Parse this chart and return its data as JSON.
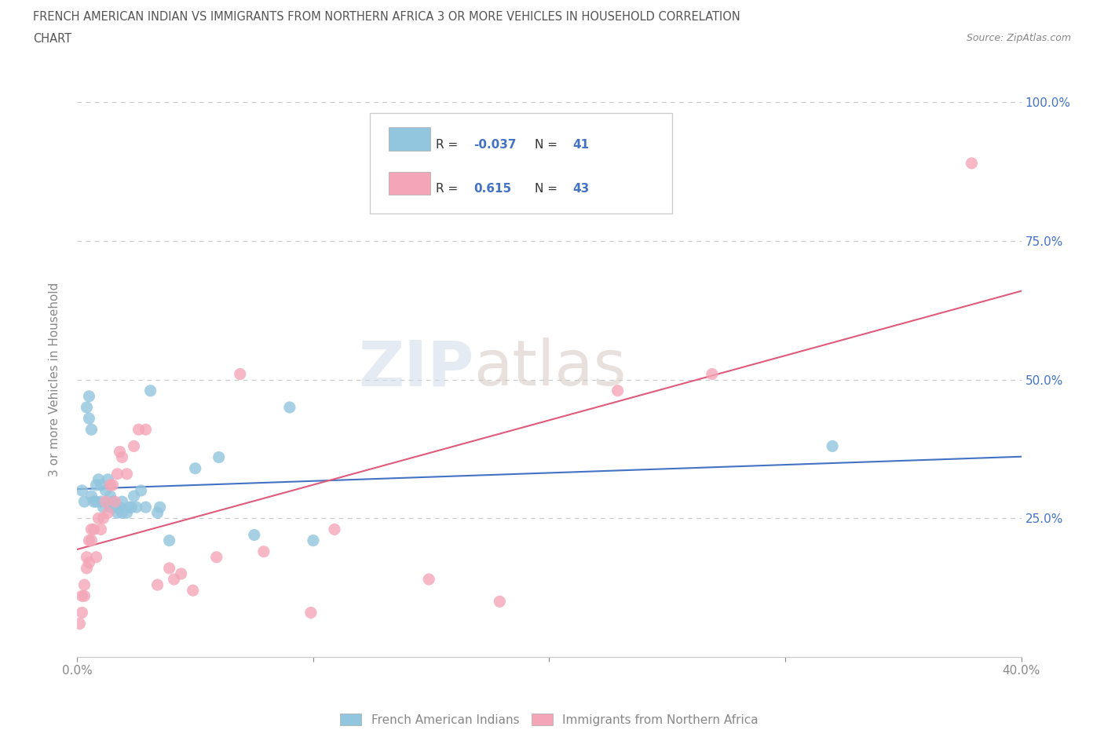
{
  "title_line1": "FRENCH AMERICAN INDIAN VS IMMIGRANTS FROM NORTHERN AFRICA 3 OR MORE VEHICLES IN HOUSEHOLD CORRELATION",
  "title_line2": "CHART",
  "source": "Source: ZipAtlas.com",
  "watermark_zip": "ZIP",
  "watermark_atlas": "atlas",
  "ylabel_label": "3 or more Vehicles in Household",
  "xlim": [
    0.0,
    0.4
  ],
  "ylim": [
    0.0,
    1.0
  ],
  "blue_label": "French American Indians",
  "pink_label": "Immigrants from Northern Africa",
  "R_blue": -0.037,
  "N_blue": 41,
  "R_pink": 0.615,
  "N_pink": 43,
  "blue_color": "#92c5de",
  "pink_color": "#f4a6b8",
  "blue_line_color": "#4472c4",
  "pink_line_color": "#e05a7a",
  "blue_scatter": [
    [
      0.002,
      0.3
    ],
    [
      0.003,
      0.28
    ],
    [
      0.004,
      0.45
    ],
    [
      0.005,
      0.47
    ],
    [
      0.005,
      0.43
    ],
    [
      0.006,
      0.41
    ],
    [
      0.006,
      0.29
    ],
    [
      0.007,
      0.28
    ],
    [
      0.008,
      0.31
    ],
    [
      0.008,
      0.28
    ],
    [
      0.009,
      0.32
    ],
    [
      0.01,
      0.31
    ],
    [
      0.01,
      0.28
    ],
    [
      0.011,
      0.27
    ],
    [
      0.012,
      0.3
    ],
    [
      0.013,
      0.32
    ],
    [
      0.014,
      0.27
    ],
    [
      0.014,
      0.29
    ],
    [
      0.015,
      0.28
    ],
    [
      0.016,
      0.27
    ],
    [
      0.017,
      0.26
    ],
    [
      0.018,
      0.27
    ],
    [
      0.019,
      0.28
    ],
    [
      0.019,
      0.26
    ],
    [
      0.021,
      0.26
    ],
    [
      0.022,
      0.27
    ],
    [
      0.023,
      0.27
    ],
    [
      0.024,
      0.29
    ],
    [
      0.025,
      0.27
    ],
    [
      0.027,
      0.3
    ],
    [
      0.029,
      0.27
    ],
    [
      0.031,
      0.48
    ],
    [
      0.034,
      0.26
    ],
    [
      0.035,
      0.27
    ],
    [
      0.039,
      0.21
    ],
    [
      0.05,
      0.34
    ],
    [
      0.06,
      0.36
    ],
    [
      0.075,
      0.22
    ],
    [
      0.09,
      0.45
    ],
    [
      0.1,
      0.21
    ],
    [
      0.32,
      0.38
    ]
  ],
  "pink_scatter": [
    [
      0.001,
      0.06
    ],
    [
      0.002,
      0.08
    ],
    [
      0.002,
      0.11
    ],
    [
      0.003,
      0.11
    ],
    [
      0.003,
      0.13
    ],
    [
      0.004,
      0.16
    ],
    [
      0.004,
      0.18
    ],
    [
      0.005,
      0.17
    ],
    [
      0.005,
      0.21
    ],
    [
      0.006,
      0.23
    ],
    [
      0.006,
      0.21
    ],
    [
      0.007,
      0.23
    ],
    [
      0.008,
      0.18
    ],
    [
      0.009,
      0.25
    ],
    [
      0.01,
      0.23
    ],
    [
      0.011,
      0.25
    ],
    [
      0.012,
      0.28
    ],
    [
      0.013,
      0.26
    ],
    [
      0.014,
      0.31
    ],
    [
      0.015,
      0.31
    ],
    [
      0.016,
      0.28
    ],
    [
      0.017,
      0.33
    ],
    [
      0.018,
      0.37
    ],
    [
      0.019,
      0.36
    ],
    [
      0.021,
      0.33
    ],
    [
      0.024,
      0.38
    ],
    [
      0.026,
      0.41
    ],
    [
      0.029,
      0.41
    ],
    [
      0.034,
      0.13
    ],
    [
      0.039,
      0.16
    ],
    [
      0.041,
      0.14
    ],
    [
      0.044,
      0.15
    ],
    [
      0.049,
      0.12
    ],
    [
      0.059,
      0.18
    ],
    [
      0.069,
      0.51
    ],
    [
      0.079,
      0.19
    ],
    [
      0.099,
      0.08
    ],
    [
      0.109,
      0.23
    ],
    [
      0.149,
      0.14
    ],
    [
      0.179,
      0.1
    ],
    [
      0.229,
      0.48
    ],
    [
      0.269,
      0.51
    ],
    [
      0.379,
      0.89
    ]
  ],
  "background_color": "#ffffff",
  "grid_color": "#c8c8c8",
  "title_color": "#555555",
  "axis_color": "#888888",
  "yticklabel_color": "#4472c4"
}
